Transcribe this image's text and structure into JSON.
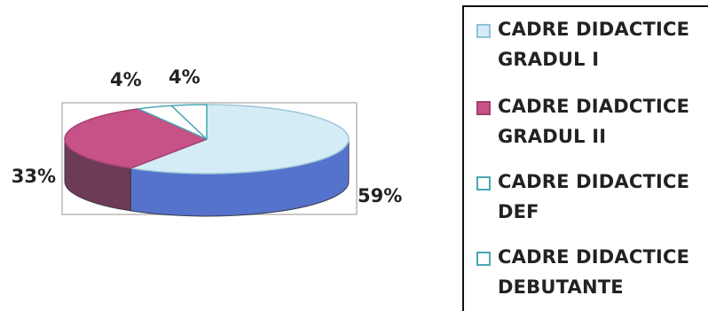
{
  "chart_data": {
    "type": "pie",
    "title": "",
    "categories": [
      "CADRE DIDACTICE GRADUL I",
      "CADRE DIADCTICE GRADUL II",
      "CADRE DIDACTICE DEF",
      "CADRE DIDACTICE DEBUTANTE"
    ],
    "values": [
      59,
      33,
      4,
      4
    ],
    "data_labels": [
      "59%",
      "33%",
      "4%",
      "4%"
    ],
    "colors": [
      "#d4ecf6",
      "#c65288",
      "#ffffff",
      "#ffffff"
    ],
    "side_colors": [
      "#5572cc",
      "#6d3b55",
      "#ffffff",
      "#ffffff"
    ],
    "edge_colors": [
      "#9dc6d8",
      "#a44070",
      "#4aa8b4",
      "#4aa8b4"
    ],
    "style": "3d",
    "legend_position": "right"
  },
  "legend": {
    "items": [
      {
        "line1": "CADRE DIDACTICE",
        "line2": "GRADUL I",
        "swatch": "#d4ecf6",
        "border": "#8fc3d8"
      },
      {
        "line1": "CADRE DIADCTICE",
        "line2": "GRADUL II",
        "swatch": "#c65288",
        "border": "#a44070"
      },
      {
        "line1": "CADRE DIDACTICE",
        "line2": "DEF",
        "swatch": "#ffffff",
        "border": "#4aa8b4"
      },
      {
        "line1": "CADRE DIDACTICE",
        "line2": "DEBUTANTE",
        "swatch": "#ffffff",
        "border": "#4aa8b4"
      }
    ]
  }
}
